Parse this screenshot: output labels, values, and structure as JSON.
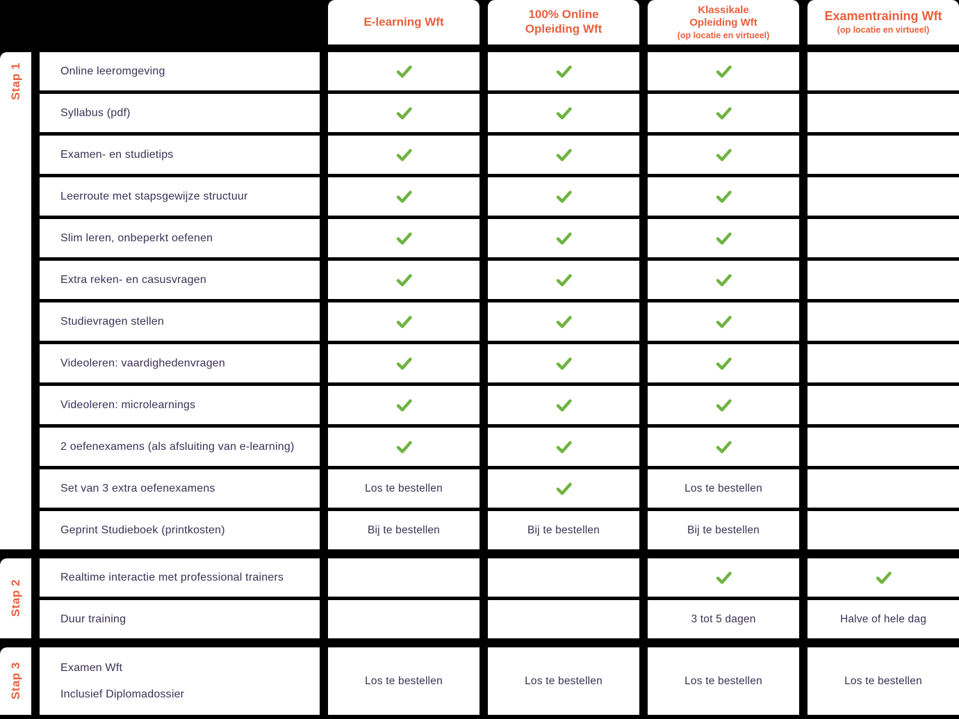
{
  "colors": {
    "accent": "#E8603D",
    "check_green": "#6FB442",
    "text": "#3A3156",
    "background": "#000000"
  },
  "table": {
    "columns": [
      {
        "title": "E-learning Wft",
        "subtitle": ""
      },
      {
        "title": "100% Online\nOpleiding Wft",
        "subtitle": ""
      },
      {
        "title": "Klassikale\nOpleiding Wft",
        "subtitle": "(op locatie en virtueel)"
      },
      {
        "title": "Examentraining Wft",
        "subtitle": "(op locatie en virtueel)"
      }
    ],
    "check_icon_meaning": "included",
    "sections": [
      {
        "label": "Stap 1",
        "rows": [
          {
            "feature": "Online leeromgeving",
            "values": [
              "check",
              "check",
              "check",
              ""
            ]
          },
          {
            "feature": "Syllabus (pdf)",
            "values": [
              "check",
              "check",
              "check",
              ""
            ]
          },
          {
            "feature": "Examen- en studietips",
            "values": [
              "check",
              "check",
              "check",
              ""
            ]
          },
          {
            "feature": "Leerroute met stapsgewijze structuur",
            "values": [
              "check",
              "check",
              "check",
              ""
            ]
          },
          {
            "feature": "Slim leren, onbeperkt oefenen",
            "values": [
              "check",
              "check",
              "check",
              ""
            ]
          },
          {
            "feature": "Extra reken- en casusvragen",
            "values": [
              "check",
              "check",
              "check",
              ""
            ]
          },
          {
            "feature": "Studievragen stellen",
            "values": [
              "check",
              "check",
              "check",
              ""
            ]
          },
          {
            "feature": "Videoleren: vaardighedenvragen",
            "values": [
              "check",
              "check",
              "check",
              ""
            ]
          },
          {
            "feature": "Videoleren: microlearnings",
            "values": [
              "check",
              "check",
              "check",
              ""
            ]
          },
          {
            "feature": "2 oefenexamens (als afsluiting van e-learning)",
            "values": [
              "check",
              "check",
              "check",
              ""
            ]
          },
          {
            "feature": "Set van 3 extra oefenexamens",
            "values": [
              "Los te bestellen",
              "check",
              "Los te bestellen",
              ""
            ]
          },
          {
            "feature": "Geprint Studieboek (printkosten)",
            "values": [
              "Bij te bestellen",
              "Bij te bestellen",
              "Bij te bestellen",
              ""
            ]
          }
        ]
      },
      {
        "label": "Stap 2",
        "rows": [
          {
            "feature": "Realtime interactie met professional trainers",
            "values": [
              "",
              "",
              "check",
              "check"
            ]
          },
          {
            "feature": "Duur training",
            "values": [
              "",
              "",
              "3 tot 5 dagen",
              "Halve of hele dag"
            ]
          }
        ]
      },
      {
        "label": "Stap 3",
        "rows": [
          {
            "feature": "Examen Wft\n\nInclusief Diplomadossier",
            "values": [
              "Los te bestellen",
              "Los te bestellen",
              "Los te bestellen",
              "Los te bestellen"
            ]
          }
        ]
      }
    ]
  }
}
